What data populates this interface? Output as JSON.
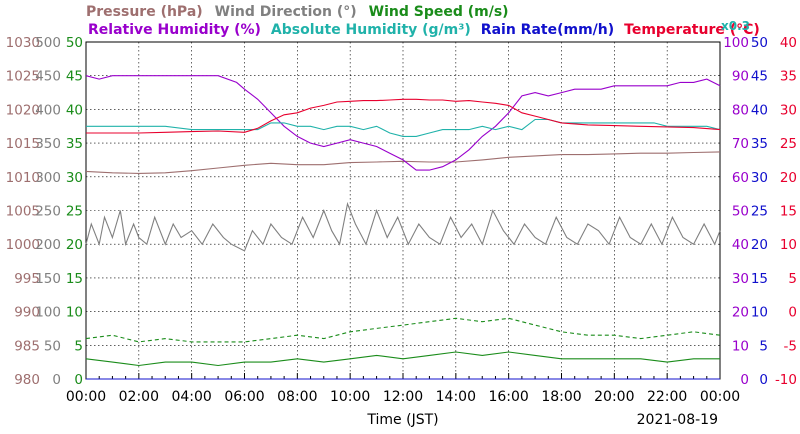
{
  "chart_data": {
    "type": "line",
    "legend": {
      "row1": [
        {
          "key": "pressure",
          "label": "Pressure (hPa)",
          "color": "#9e6f6f"
        },
        {
          "key": "wind_direction",
          "label": "Wind Direction (°)",
          "color": "#808080"
        },
        {
          "key": "wind_speed",
          "label": "Wind Speed (m/s)",
          "color": "#1a8c1a"
        }
      ],
      "row2": [
        {
          "key": "humidity",
          "label": "Relative Humidity (%)",
          "color": "#9900cc"
        },
        {
          "key": "abs_humidity",
          "label": "Absolute Humidity (g/m³)",
          "color": "#20b2aa"
        },
        {
          "key": "rain_rate",
          "label": "Rain Rate(mm/h)",
          "color": "#1010cc"
        },
        {
          "key": "temperature",
          "label": "Temperature (°C)",
          "color": "#e8002e"
        }
      ],
      "abs_humidity_factor": "x0.3"
    },
    "xlabel": "Time (JST)",
    "date": "2021-08-19",
    "x_ticks": [
      "00:00",
      "02:00",
      "04:00",
      "06:00",
      "08:00",
      "10:00",
      "12:00",
      "14:00",
      "16:00",
      "18:00",
      "20:00",
      "22:00",
      "00:00"
    ],
    "x_range_hours": [
      0,
      24
    ],
    "axes": {
      "pressure": {
        "ticks": [
          "1030",
          "1025",
          "1020",
          "1015",
          "1010",
          "1005",
          "1000",
          "995",
          "990",
          "985",
          "980"
        ],
        "range": [
          980,
          1030
        ],
        "color": "#9e6f6f"
      },
      "wind_direction": {
        "ticks": [
          "500",
          "450",
          "400",
          "350",
          "300",
          "250",
          "200",
          "150",
          "100",
          "50",
          "0"
        ],
        "range": [
          0,
          500
        ],
        "color": "#808080"
      },
      "wind_speed": {
        "ticks": [
          "50",
          "45",
          "40",
          "35",
          "30",
          "25",
          "20",
          "15",
          "10",
          "5",
          "0"
        ],
        "range": [
          0,
          50
        ],
        "color": "#1a8c1a"
      },
      "humidity": {
        "ticks": [
          "100",
          "90",
          "80",
          "70",
          "60",
          "50",
          "40",
          "30",
          "20",
          "10",
          "0"
        ],
        "range": [
          0,
          100
        ],
        "color": "#9900cc"
      },
      "rain_rate": {
        "ticks": [
          "50",
          "45",
          "40",
          "35",
          "30",
          "25",
          "20",
          "15",
          "10",
          "5",
          "0"
        ],
        "range": [
          0,
          50
        ],
        "color": "#1010cc"
      },
      "temperature": {
        "ticks": [
          "40",
          "35",
          "30",
          "25",
          "20",
          "15",
          "10",
          "5",
          "0",
          "-5",
          "-10"
        ],
        "range": [
          -10,
          40
        ],
        "color": "#e8002e"
      }
    },
    "grid": true,
    "series": [
      {
        "key": "pressure",
        "name": "Pressure (hPa)",
        "axis": "pressure",
        "style": "solid",
        "x": [
          0,
          1,
          2,
          3,
          4,
          5,
          6,
          7,
          8,
          9,
          10,
          11,
          12,
          13,
          14,
          15,
          16,
          17,
          18,
          19,
          20,
          21,
          22,
          23,
          24
        ],
        "y": [
          1010.8,
          1010.6,
          1010.5,
          1010.6,
          1010.9,
          1011.3,
          1011.7,
          1012.0,
          1011.8,
          1011.8,
          1012.1,
          1012.2,
          1012.3,
          1012.2,
          1012.2,
          1012.5,
          1012.9,
          1013.1,
          1013.3,
          1013.3,
          1013.4,
          1013.5,
          1013.5,
          1013.6,
          1013.7
        ]
      },
      {
        "key": "wind_direction",
        "name": "Wind Direction (°)",
        "axis": "wind_direction",
        "style": "solid",
        "x": [
          0,
          0.2,
          0.5,
          0.7,
          1.0,
          1.3,
          1.5,
          1.8,
          2.0,
          2.3,
          2.6,
          3.0,
          3.3,
          3.6,
          4.0,
          4.4,
          4.8,
          5.2,
          5.5,
          6.0,
          6.3,
          6.7,
          7.0,
          7.4,
          7.8,
          8.2,
          8.6,
          9.0,
          9.3,
          9.6,
          9.9,
          10.2,
          10.6,
          11.0,
          11.4,
          11.8,
          12.2,
          12.6,
          13.0,
          13.4,
          13.8,
          14.2,
          14.6,
          15.0,
          15.4,
          15.8,
          16.2,
          16.6,
          17.0,
          17.4,
          17.8,
          18.2,
          18.6,
          19.0,
          19.4,
          19.8,
          20.2,
          20.6,
          21.0,
          21.4,
          21.8,
          22.2,
          22.6,
          23.0,
          23.4,
          23.8,
          24.0
        ],
        "y": [
          200,
          230,
          200,
          240,
          210,
          250,
          200,
          230,
          210,
          200,
          240,
          200,
          230,
          210,
          220,
          200,
          230,
          210,
          200,
          190,
          220,
          200,
          230,
          210,
          200,
          240,
          210,
          250,
          220,
          200,
          260,
          230,
          200,
          250,
          210,
          240,
          200,
          230,
          210,
          200,
          240,
          210,
          230,
          200,
          250,
          220,
          200,
          230,
          210,
          200,
          240,
          210,
          200,
          230,
          220,
          200,
          240,
          210,
          200,
          230,
          200,
          240,
          210,
          200,
          230,
          200,
          220
        ]
      },
      {
        "key": "wind_speed",
        "name": "Wind Speed (m/s)",
        "axis": "wind_speed",
        "style": "solid",
        "x": [
          0,
          1,
          2,
          3,
          4,
          5,
          6,
          7,
          8,
          9,
          10,
          11,
          12,
          13,
          14,
          15,
          16,
          17,
          18,
          19,
          20,
          21,
          22,
          23,
          24
        ],
        "y": [
          3.0,
          2.5,
          2.0,
          2.5,
          2.5,
          2.0,
          2.5,
          2.5,
          3.0,
          2.5,
          3.0,
          3.5,
          3.0,
          3.5,
          4.0,
          3.5,
          4.0,
          3.5,
          3.0,
          3.0,
          3.0,
          3.0,
          2.5,
          3.0,
          3.0
        ]
      },
      {
        "key": "wind_gust",
        "name": "",
        "axis": "wind_speed",
        "style": "dashed",
        "x": [
          0,
          1,
          2,
          3,
          4,
          5,
          6,
          7,
          8,
          9,
          10,
          11,
          12,
          13,
          14,
          15,
          16,
          17,
          18,
          19,
          20,
          21,
          22,
          23,
          24
        ],
        "y": [
          6.0,
          6.5,
          5.5,
          6.0,
          5.5,
          5.5,
          5.5,
          6.0,
          6.5,
          6.0,
          7.0,
          7.5,
          8.0,
          8.5,
          9.0,
          8.5,
          9.0,
          8.0,
          7.0,
          6.5,
          6.5,
          6.0,
          6.5,
          7.0,
          6.5
        ]
      },
      {
        "key": "humidity",
        "name": "Relative Humidity (%)",
        "axis": "humidity",
        "style": "solid",
        "x": [
          0,
          0.5,
          1,
          2,
          3,
          4,
          5,
          5.7,
          6.0,
          6.5,
          7.0,
          7.5,
          8.0,
          8.5,
          9.0,
          9.5,
          10,
          10.5,
          11,
          11.5,
          12,
          12.5,
          13,
          13.5,
          14,
          14.5,
          15,
          15.5,
          16,
          16.5,
          17,
          17.5,
          18,
          18.5,
          19,
          19.5,
          20,
          20.5,
          21,
          21.5,
          22,
          22.5,
          23,
          23.5,
          24
        ],
        "y": [
          90,
          89,
          90,
          90,
          90,
          90,
          90,
          88,
          86,
          83,
          79,
          75,
          72,
          70,
          69,
          70,
          71,
          70,
          69,
          67,
          65,
          62,
          62,
          63,
          65,
          68,
          72,
          75,
          79,
          84,
          85,
          84,
          85,
          86,
          86,
          86,
          87,
          87,
          87,
          87,
          87,
          88,
          88,
          89,
          87
        ]
      },
      {
        "key": "abs_humidity",
        "name": "Absolute Humidity (g/m³)",
        "axis": "humidity",
        "style": "solid",
        "x": [
          0,
          1,
          2,
          3,
          4,
          5,
          6,
          6.5,
          7,
          7.5,
          8,
          8.5,
          9,
          9.5,
          10,
          10.5,
          11,
          11.5,
          12,
          12.5,
          13,
          13.5,
          14,
          14.5,
          15,
          15.5,
          16,
          16.5,
          17,
          17.5,
          18,
          18.5,
          19,
          19.5,
          20,
          20.5,
          21,
          21.5,
          22,
          22.5,
          23,
          23.5,
          24
        ],
        "y": [
          75,
          75,
          75,
          75,
          74,
          74,
          74,
          74,
          76,
          76,
          75,
          75,
          74,
          75,
          75,
          74,
          75,
          73,
          72,
          72,
          73,
          74,
          74,
          74,
          75,
          74,
          75,
          74,
          77,
          77,
          76,
          76,
          76,
          76,
          76,
          76,
          76,
          76,
          75,
          75,
          75,
          75,
          74
        ]
      },
      {
        "key": "temperature",
        "name": "Temperature (°C)",
        "axis": "temperature",
        "style": "solid",
        "x": [
          0,
          1,
          2,
          3,
          4,
          5,
          6,
          6.5,
          7,
          7.5,
          8,
          8.5,
          9,
          9.5,
          10,
          10.5,
          11,
          11.5,
          12,
          12.5,
          13,
          13.5,
          14,
          14.5,
          15,
          15.5,
          16,
          16.5,
          17,
          17.5,
          18,
          19,
          20,
          21,
          22,
          23,
          24
        ],
        "y": [
          26.5,
          26.5,
          26.5,
          26.6,
          26.7,
          26.8,
          26.6,
          27.2,
          28.3,
          29.2,
          29.5,
          30.2,
          30.6,
          31.1,
          31.2,
          31.3,
          31.3,
          31.4,
          31.5,
          31.5,
          31.4,
          31.4,
          31.2,
          31.3,
          31.1,
          30.9,
          30.6,
          29.5,
          29.0,
          28.5,
          28.0,
          27.7,
          27.6,
          27.5,
          27.4,
          27.3,
          27.0
        ]
      },
      {
        "key": "rain_rate",
        "name": "Rain Rate(mm/h)",
        "axis": "rain_rate",
        "style": "solid",
        "x": [
          0,
          24
        ],
        "y": [
          0,
          0
        ]
      }
    ]
  }
}
